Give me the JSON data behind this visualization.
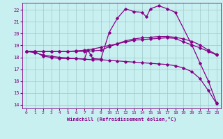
{
  "xlabel": "Windchill (Refroidissement éolien,°C)",
  "bg_color": "#c8f0f0",
  "grid_color": "#a0c8c8",
  "line_color": "#880088",
  "xlim": [
    -0.5,
    23.5
  ],
  "ylim": [
    13.7,
    22.6
  ],
  "yticks": [
    14,
    15,
    16,
    17,
    18,
    19,
    20,
    21,
    22
  ],
  "xticks": [
    0,
    1,
    2,
    3,
    4,
    5,
    6,
    7,
    8,
    9,
    10,
    11,
    12,
    13,
    14,
    15,
    16,
    17,
    18,
    19,
    20,
    21,
    22,
    23
  ],
  "series": {
    "line1_diag": {
      "x": [
        0,
        1,
        2,
        3,
        4,
        5,
        6,
        7,
        8,
        9,
        10,
        11,
        12,
        13,
        14,
        15,
        16,
        17,
        18,
        19,
        20,
        21,
        22,
        23
      ],
      "y": [
        18.5,
        18.5,
        18.1,
        18.0,
        17.9,
        17.9,
        17.9,
        17.85,
        17.8,
        17.8,
        17.75,
        17.7,
        17.65,
        17.6,
        17.55,
        17.5,
        17.45,
        17.4,
        17.3,
        17.1,
        16.8,
        16.2,
        15.2,
        14.1
      ]
    },
    "line2_flat": {
      "x": [
        0,
        1,
        2,
        3,
        4,
        5,
        6,
        7,
        8,
        9,
        10,
        11,
        12,
        13,
        14,
        15,
        16,
        17,
        18,
        19,
        20,
        21,
        22,
        23
      ],
      "y": [
        18.5,
        18.5,
        18.5,
        18.5,
        18.5,
        18.5,
        18.55,
        18.6,
        18.7,
        18.85,
        19.0,
        19.15,
        19.3,
        19.45,
        19.5,
        19.55,
        19.6,
        19.65,
        19.6,
        19.3,
        19.05,
        18.8,
        18.5,
        18.2
      ]
    },
    "line3_peak": {
      "x": [
        0,
        1,
        2,
        3,
        4,
        5,
        6,
        7,
        7.4,
        7.8,
        8,
        9,
        10,
        11,
        12,
        13,
        14,
        14.5,
        15,
        16,
        17,
        18,
        20,
        21,
        22,
        23
      ],
      "y": [
        18.5,
        18.4,
        18.2,
        18.1,
        18.0,
        17.95,
        17.9,
        17.85,
        18.6,
        18.2,
        17.9,
        17.85,
        20.1,
        21.3,
        22.1,
        21.85,
        21.8,
        21.4,
        22.1,
        22.35,
        22.1,
        21.8,
        19.05,
        17.5,
        16.0,
        14.15
      ]
    },
    "line4_mid": {
      "x": [
        0,
        1,
        2,
        3,
        4,
        5,
        6,
        7,
        8,
        9,
        10,
        11,
        12,
        13,
        14,
        15,
        16,
        17,
        18,
        19,
        20,
        21,
        22,
        23
      ],
      "y": [
        18.5,
        18.5,
        18.5,
        18.5,
        18.5,
        18.5,
        18.5,
        18.5,
        18.55,
        18.6,
        18.9,
        19.15,
        19.4,
        19.55,
        19.65,
        19.7,
        19.75,
        19.75,
        19.7,
        19.55,
        19.35,
        19.05,
        18.6,
        18.25
      ]
    }
  }
}
